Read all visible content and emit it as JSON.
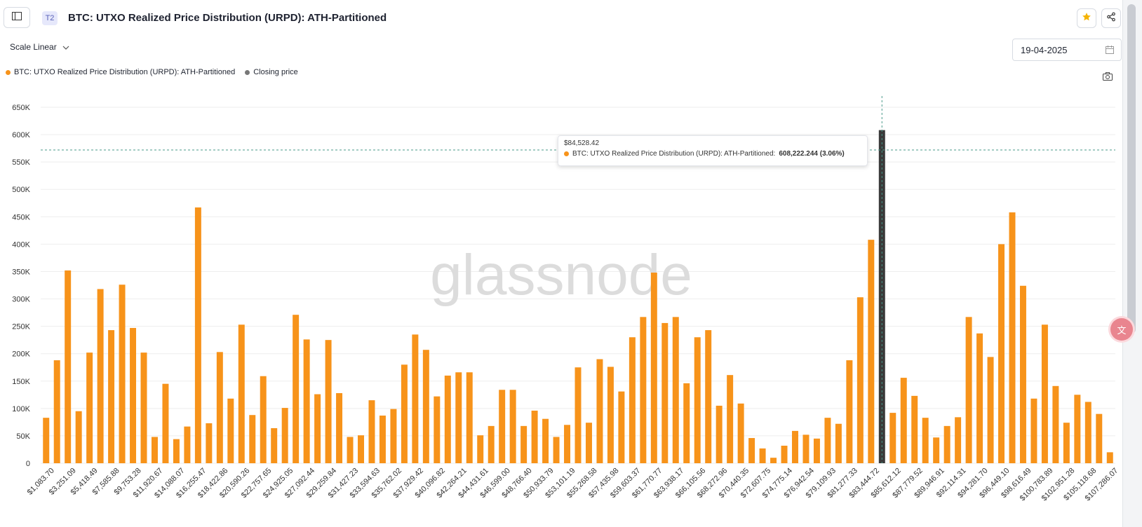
{
  "header": {
    "title": "BTC: UTXO Realized Price Distribution (URPD): ATH-Partitioned",
    "tier_badge": "T2"
  },
  "controls": {
    "scale_label": "Scale Linear",
    "date_value": "19-04-2025"
  },
  "legend": [
    {
      "label": "BTC: UTXO Realized Price Distribution (URPD): ATH-Partitioned",
      "color": "#f7931a"
    },
    {
      "label": "Closing price",
      "color": "#777777"
    }
  ],
  "watermark": "glassnode",
  "tooltip": {
    "x_label": "$84,528.42",
    "series": "BTC: UTXO Realized Price Distribution (URPD): ATH-Partitioned:",
    "value": "608,222.244 (3.06%)"
  },
  "chart_data": {
    "type": "bar",
    "y_ticks": [
      "0",
      "50K",
      "100K",
      "150K",
      "200K",
      "250K",
      "300K",
      "350K",
      "400K",
      "450K",
      "500K",
      "550K",
      "600K",
      "650K"
    ],
    "ylim": [
      0,
      650000
    ],
    "x_tick_labels": [
      "$1,083.70",
      "$3,251.09",
      "$5,418.49",
      "$7,585.88",
      "$9,753.28",
      "$11,920.67",
      "$14,088.07",
      "$16,255.47",
      "$18,422.86",
      "$20,590.26",
      "$22,757.65",
      "$24,925.05",
      "$27,092.44",
      "$29,259.84",
      "$31,427.23",
      "$33,594.63",
      "$35,762.02",
      "$37,929.42",
      "$40,096.82",
      "$42,264.21",
      "$44,431.61",
      "$46,599.00",
      "$48,766.40",
      "$50,933.79",
      "$53,101.19",
      "$55,268.58",
      "$57,435.98",
      "$59,603.37",
      "$61,770.77",
      "$63,938.17",
      "$66,105.56",
      "$68,272.96",
      "$70,440.35",
      "$72,607.75",
      "$74,775.14",
      "$76,942.54",
      "$79,109.93",
      "$81,277.33",
      "$83,444.72",
      "$85,612.12",
      "$87,779.52",
      "$89,946.91",
      "$92,114.31",
      "$94,281.70",
      "$96,449.10",
      "$98,616.49",
      "$100,783.89",
      "$102,951.28",
      "$105,118.68",
      "$107,286.07"
    ],
    "values": [
      83000,
      188000,
      352000,
      95000,
      202000,
      318000,
      243000,
      326000,
      247000,
      202000,
      48000,
      145000,
      44000,
      67000,
      467000,
      73000,
      203000,
      118000,
      253000,
      88000,
      159000,
      64000,
      101000,
      271000,
      226000,
      126000,
      225000,
      128000,
      48000,
      51000,
      115000,
      87000,
      99000,
      180000,
      235000,
      207000,
      122000,
      160000,
      166000,
      166000,
      51000,
      68000,
      134000,
      134000,
      68000,
      96000,
      81000,
      48000,
      70000,
      175000,
      74000,
      190000,
      176000,
      131000,
      230000,
      267000,
      348000,
      256000,
      267000,
      146000,
      230000,
      243000,
      105000,
      161000,
      109000,
      46000,
      27000,
      10000,
      32000,
      59000,
      52000,
      45000,
      83000,
      72000,
      188000,
      303000,
      408000,
      608222,
      92000,
      156000,
      123000,
      83000,
      47000,
      68000,
      84000,
      267000,
      237000,
      194000,
      400000,
      458000,
      324000,
      118000,
      253000,
      141000,
      74000,
      125000,
      112000,
      90000,
      20000
    ],
    "highlight_index": 77,
    "closing_price_value": 572000,
    "series": [
      {
        "name": "BTC: UTXO Realized Price Distribution (URPD): ATH-Partitioned",
        "color": "#f7931a"
      },
      {
        "name": "Closing price",
        "color": "#3a3a3a"
      }
    ],
    "grid": true
  }
}
